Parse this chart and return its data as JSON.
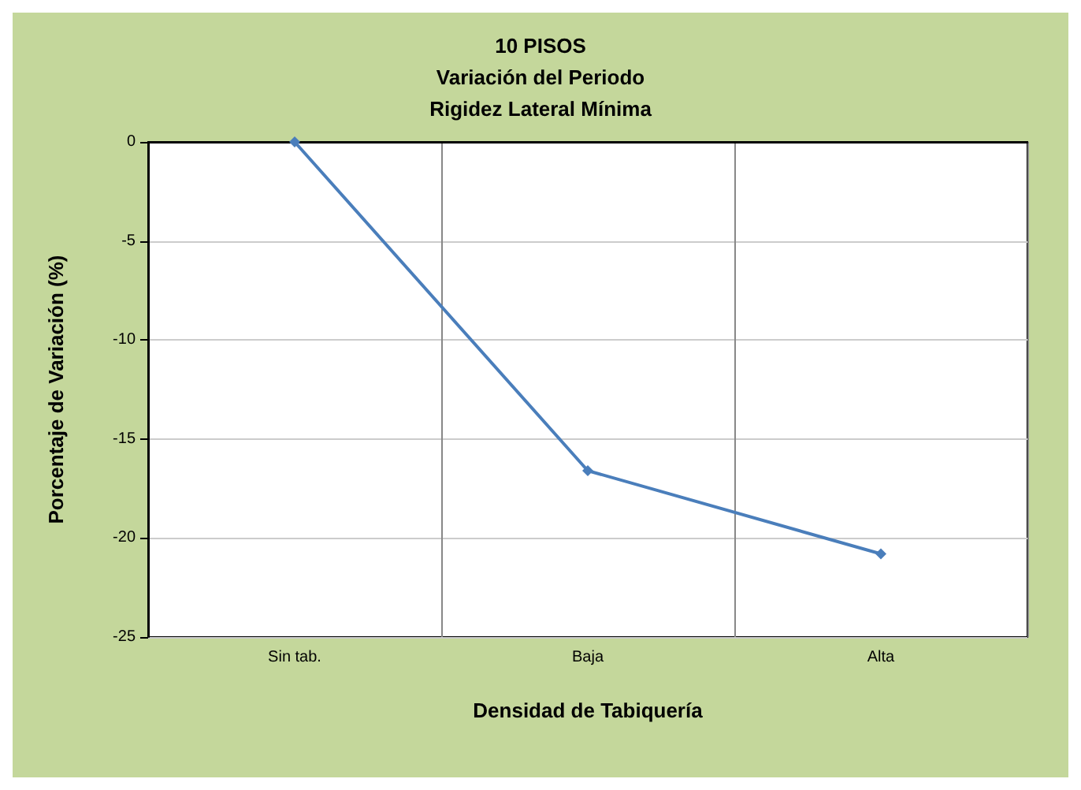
{
  "chart_data": {
    "type": "line",
    "title": "10 PISOS\nVariación del Periodo\nRigidez Lateral Mínima",
    "xlabel": "Densidad de Tabiquería",
    "ylabel": "Porcentaje de Variación (%)",
    "categories": [
      "Sin tab.",
      "Baja",
      "Alta"
    ],
    "series": [
      {
        "color": "#4a7ebb",
        "values": [
          0,
          -16.6,
          -20.8
        ]
      }
    ],
    "ylim": [
      -25,
      0
    ],
    "yticks": [
      -25,
      -20,
      -15,
      -10,
      -5,
      0
    ],
    "grid": true,
    "marker": "diamond"
  }
}
